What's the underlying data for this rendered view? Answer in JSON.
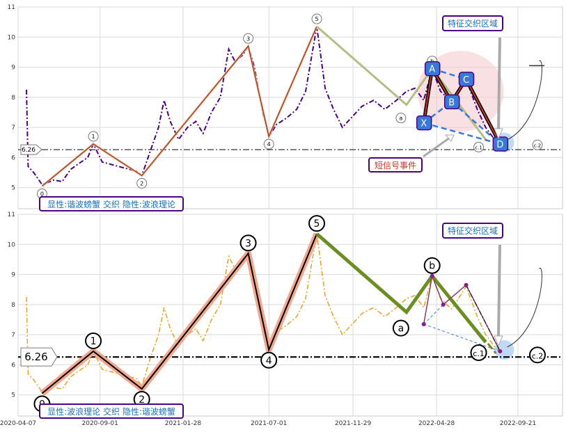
{
  "chart_data": [
    {
      "type": "line",
      "panel": "top",
      "ylim": [
        4.3,
        11
      ],
      "yticks": [
        5,
        6,
        7,
        8,
        9,
        10,
        11
      ],
      "xlim": [
        "2020-04-07",
        "2022-12-10"
      ],
      "xticks": [
        "2020-04-07",
        "2020-09-01",
        "2021-01-28",
        "2021-07-01",
        "2021-11-29",
        "2022-04-28",
        "2022-09-21"
      ],
      "grid": true,
      "price_line_color": "#4b0082",
      "reference_line": {
        "value": 6.26,
        "label": "6.26"
      },
      "wave_points": [
        {
          "label": "0",
          "date": "2020-05-20",
          "value": 5.05
        },
        {
          "label": "1",
          "date": "2020-08-20",
          "value": 6.45
        },
        {
          "label": "2",
          "date": "2020-11-15",
          "value": 5.4
        },
        {
          "label": "3",
          "date": "2021-05-25",
          "value": 9.7
        },
        {
          "label": "4",
          "date": "2021-07-01",
          "value": 6.7
        },
        {
          "label": "5",
          "date": "2021-09-25",
          "value": 10.35
        }
      ],
      "wave_continuation": [
        {
          "label": "a",
          "date": "2022-03-05",
          "value": 7.75
        },
        {
          "label": "b",
          "date": "2022-04-20",
          "value": 8.95
        },
        {
          "label": "c.1",
          "date": "2022-07-25",
          "value": 6.6
        },
        {
          "label": "c.2",
          "date": "2022-09-21",
          "value": 6.35
        }
      ],
      "harmonic_points": [
        {
          "label": "X",
          "date": "2022-04-05",
          "value": 7.15
        },
        {
          "label": "A",
          "date": "2022-04-20",
          "value": 8.95
        },
        {
          "label": "B",
          "date": "2022-05-25",
          "value": 7.85
        },
        {
          "label": "C",
          "date": "2022-06-20",
          "value": 8.6
        },
        {
          "label": "D",
          "date": "2022-08-20",
          "value": 6.45
        }
      ],
      "annotations": {
        "feature_zone": "特征交织区域",
        "short_signal": "短信号事件",
        "legend": "显性:谐波螃蟹 交织 隐性:波浪理论"
      },
      "price_series": [
        [
          "2020-04-22",
          8.25
        ],
        [
          "2020-04-25",
          5.7
        ],
        [
          "2020-05-05",
          5.5
        ],
        [
          "2020-05-20",
          5.1
        ],
        [
          "2020-06-10",
          5.25
        ],
        [
          "2020-06-25",
          5.2
        ],
        [
          "2020-07-10",
          5.6
        ],
        [
          "2020-07-25",
          5.8
        ],
        [
          "2020-08-10",
          6.0
        ],
        [
          "2020-08-20",
          6.45
        ],
        [
          "2020-09-05",
          5.85
        ],
        [
          "2020-09-25",
          5.75
        ],
        [
          "2020-10-15",
          5.65
        ],
        [
          "2020-11-05",
          5.55
        ],
        [
          "2020-11-15",
          5.4
        ],
        [
          "2020-11-30",
          6.2
        ],
        [
          "2020-12-15",
          7.0
        ],
        [
          "2020-12-25",
          7.9
        ],
        [
          "2021-01-05",
          7.2
        ],
        [
          "2021-01-20",
          6.6
        ],
        [
          "2021-02-05",
          7.0
        ],
        [
          "2021-02-20",
          7.2
        ],
        [
          "2021-03-05",
          6.8
        ],
        [
          "2021-03-20",
          7.5
        ],
        [
          "2021-04-05",
          8.0
        ],
        [
          "2021-04-20",
          9.6
        ],
        [
          "2021-05-01",
          9.2
        ],
        [
          "2021-05-15",
          9.4
        ],
        [
          "2021-05-25",
          9.7
        ],
        [
          "2021-06-05",
          9.0
        ],
        [
          "2021-06-20",
          7.5
        ],
        [
          "2021-07-01",
          6.7
        ],
        [
          "2021-07-15",
          7.1
        ],
        [
          "2021-08-01",
          7.3
        ],
        [
          "2021-08-20",
          7.6
        ],
        [
          "2021-09-05",
          8.2
        ],
        [
          "2021-09-25",
          10.35
        ],
        [
          "2021-10-10",
          8.3
        ],
        [
          "2021-10-25",
          7.6
        ],
        [
          "2021-11-10",
          7.0
        ],
        [
          "2021-11-25",
          7.3
        ],
        [
          "2021-12-15",
          7.7
        ],
        [
          "2022-01-05",
          7.9
        ],
        [
          "2022-01-25",
          7.6
        ],
        [
          "2022-02-15",
          7.9
        ],
        [
          "2022-03-05",
          8.2
        ],
        [
          "2022-03-20",
          8.3
        ],
        [
          "2022-04-05",
          7.9
        ],
        [
          "2022-04-20",
          8.95
        ],
        [
          "2022-05-05",
          8.2
        ],
        [
          "2022-05-25",
          7.85
        ],
        [
          "2022-06-20",
          8.6
        ],
        [
          "2022-07-10",
          7.6
        ],
        [
          "2022-07-25",
          7.0
        ],
        [
          "2022-08-10",
          6.6
        ],
        [
          "2022-08-20",
          6.45
        ]
      ]
    },
    {
      "type": "line",
      "panel": "bottom",
      "ylim": [
        4.3,
        11
      ],
      "yticks": [
        5,
        6,
        7,
        8,
        9,
        10,
        11
      ],
      "xlim": [
        "2020-04-07",
        "2022-12-10"
      ],
      "xticks": [
        "2020-04-07",
        "2020-09-01",
        "2021-01-28",
        "2021-07-01",
        "2021-11-29",
        "2022-04-28",
        "2022-09-21"
      ],
      "grid": true,
      "price_line_color": "#e8a020",
      "reference_line": {
        "value": 6.26,
        "label": "6.26"
      },
      "wave_points": [
        {
          "label": "0",
          "date": "2020-05-20",
          "value": 5.05
        },
        {
          "label": "1",
          "date": "2020-08-20",
          "value": 6.45
        },
        {
          "label": "2",
          "date": "2020-11-15",
          "value": 5.2
        },
        {
          "label": "3",
          "date": "2021-05-25",
          "value": 9.7
        },
        {
          "label": "4",
          "date": "2021-07-01",
          "value": 6.5
        },
        {
          "label": "5",
          "date": "2021-09-25",
          "value": 10.35
        }
      ],
      "wave_continuation": [
        {
          "label": "a",
          "date": "2022-03-05",
          "value": 7.75
        },
        {
          "label": "b",
          "date": "2022-04-20",
          "value": 8.95
        },
        {
          "label": "c.1",
          "date": "2022-07-25",
          "value": 6.75
        },
        {
          "label": "c.2",
          "date": "2022-09-21",
          "value": 6.35
        }
      ],
      "harmonic_points": [
        {
          "label": "",
          "date": "2022-04-05",
          "value": 7.35
        },
        {
          "label": "",
          "date": "2022-04-20",
          "value": 8.95
        },
        {
          "label": "",
          "date": "2022-05-10",
          "value": 8.0
        },
        {
          "label": "",
          "date": "2022-06-20",
          "value": 8.65
        },
        {
          "label": "",
          "date": "2022-08-20",
          "value": 6.45
        }
      ],
      "annotations": {
        "feature_zone": "特征交织区域",
        "legend": "显性:波浪理论 交织 隐性:谐波螃蟹"
      },
      "price_series": [
        [
          "2020-04-22",
          8.25
        ],
        [
          "2020-04-25",
          5.7
        ],
        [
          "2020-05-05",
          5.5
        ],
        [
          "2020-05-20",
          5.1
        ],
        [
          "2020-06-10",
          5.25
        ],
        [
          "2020-06-25",
          5.2
        ],
        [
          "2020-07-10",
          5.6
        ],
        [
          "2020-07-25",
          5.8
        ],
        [
          "2020-08-10",
          6.0
        ],
        [
          "2020-08-20",
          6.45
        ],
        [
          "2020-09-05",
          5.85
        ],
        [
          "2020-09-25",
          5.75
        ],
        [
          "2020-10-15",
          5.65
        ],
        [
          "2020-11-05",
          5.55
        ],
        [
          "2020-11-15",
          5.3
        ],
        [
          "2020-11-30",
          6.2
        ],
        [
          "2020-12-15",
          7.0
        ],
        [
          "2020-12-25",
          7.9
        ],
        [
          "2021-01-05",
          7.2
        ],
        [
          "2021-01-20",
          6.6
        ],
        [
          "2021-02-05",
          7.0
        ],
        [
          "2021-02-20",
          7.2
        ],
        [
          "2021-03-05",
          6.8
        ],
        [
          "2021-03-20",
          7.5
        ],
        [
          "2021-04-05",
          8.0
        ],
        [
          "2021-04-20",
          9.6
        ],
        [
          "2021-05-01",
          9.2
        ],
        [
          "2021-05-15",
          9.4
        ],
        [
          "2021-05-25",
          9.7
        ],
        [
          "2021-06-05",
          9.0
        ],
        [
          "2021-06-20",
          7.5
        ],
        [
          "2021-07-01",
          6.6
        ],
        [
          "2021-07-15",
          7.1
        ],
        [
          "2021-08-01",
          7.3
        ],
        [
          "2021-08-20",
          7.6
        ],
        [
          "2021-09-05",
          8.2
        ],
        [
          "2021-09-25",
          10.35
        ],
        [
          "2021-10-10",
          8.3
        ],
        [
          "2021-10-25",
          7.6
        ],
        [
          "2021-11-10",
          7.0
        ],
        [
          "2021-11-25",
          7.3
        ],
        [
          "2021-12-15",
          7.7
        ],
        [
          "2022-01-05",
          7.9
        ],
        [
          "2022-01-25",
          7.6
        ],
        [
          "2022-02-15",
          7.9
        ],
        [
          "2022-03-05",
          8.2
        ],
        [
          "2022-03-20",
          8.3
        ],
        [
          "2022-04-05",
          7.9
        ],
        [
          "2022-04-20",
          8.95
        ],
        [
          "2022-05-05",
          8.2
        ],
        [
          "2022-05-25",
          7.85
        ],
        [
          "2022-06-20",
          8.6
        ],
        [
          "2022-07-10",
          7.6
        ],
        [
          "2022-07-25",
          7.0
        ],
        [
          "2022-08-10",
          6.6
        ],
        [
          "2022-08-20",
          6.45
        ]
      ]
    }
  ]
}
